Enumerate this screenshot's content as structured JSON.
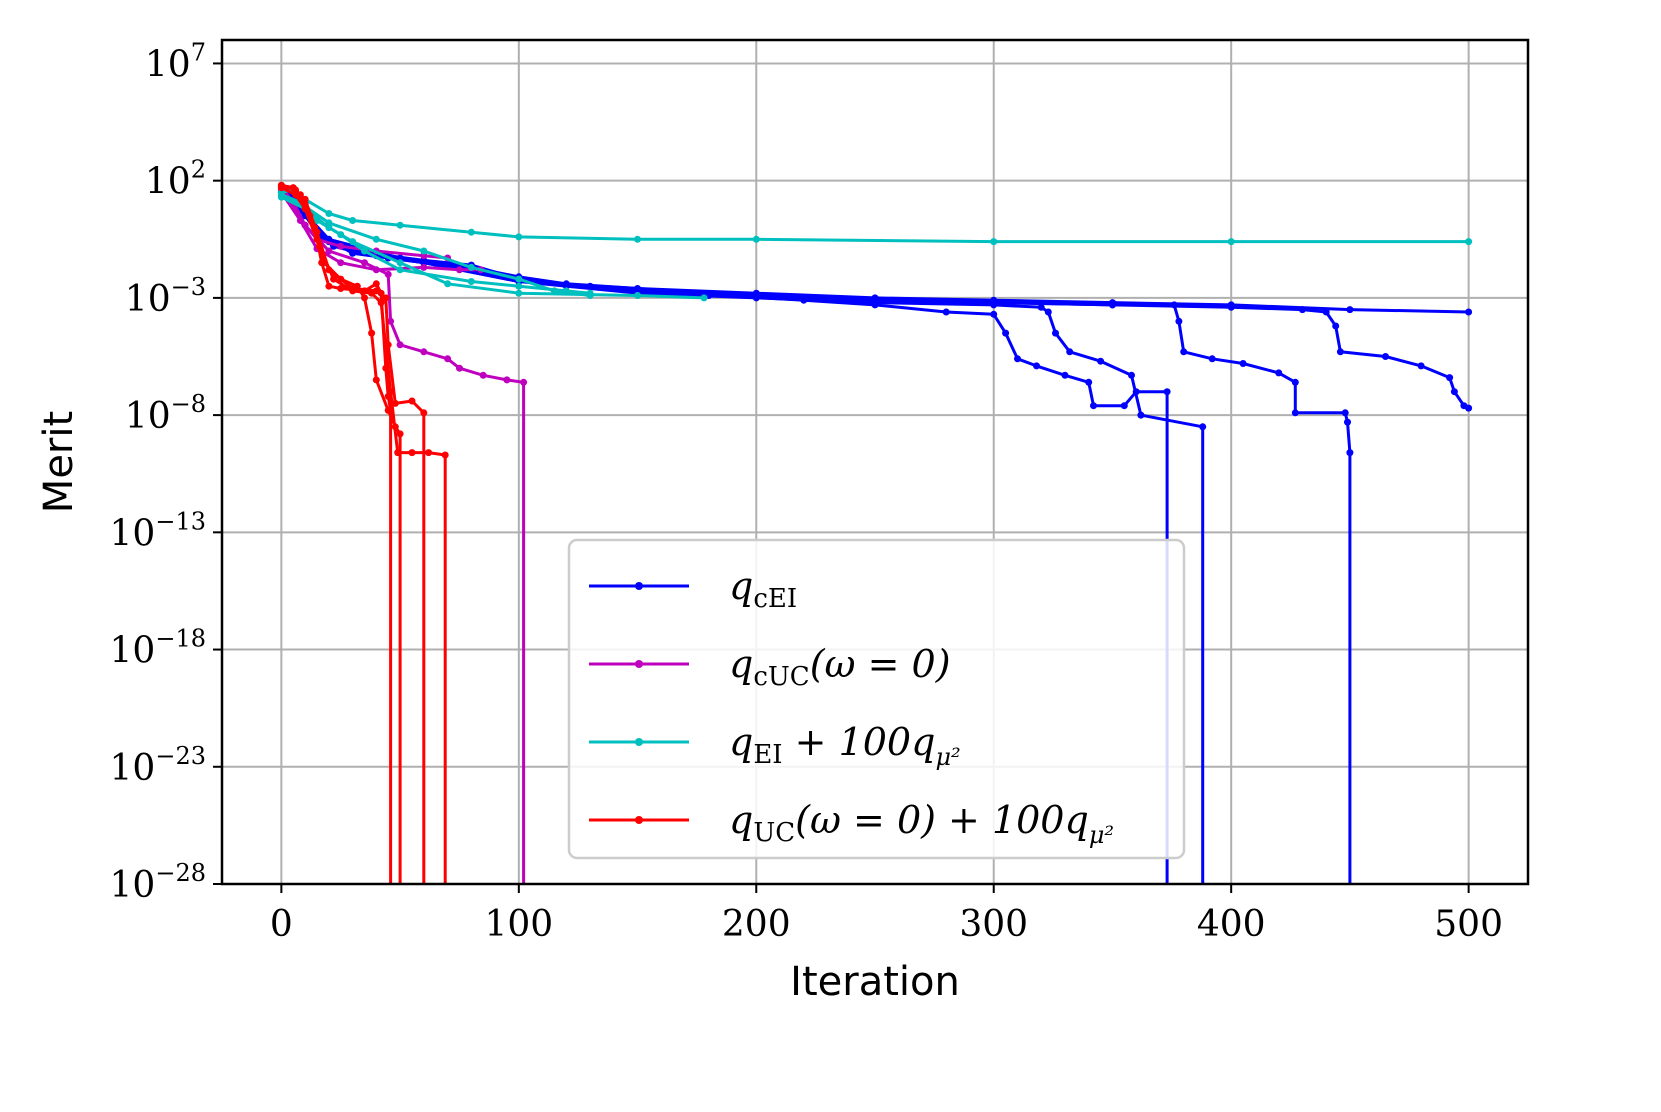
{
  "chart_data": {
    "type": "line",
    "xlabel": "Iteration",
    "ylabel": "Merit",
    "yscale": "log",
    "xlim": [
      -25,
      525
    ],
    "ylim_exponent": [
      -28,
      8
    ],
    "grid": true,
    "legend_position": "lower-center",
    "x_ticks": [
      {
        "value": 0,
        "label": "0"
      },
      {
        "value": 100,
        "label": "100"
      },
      {
        "value": 200,
        "label": "200"
      },
      {
        "value": 300,
        "label": "300"
      },
      {
        "value": 400,
        "label": "400"
      },
      {
        "value": 500,
        "label": "500"
      }
    ],
    "y_ticks": [
      {
        "exp": 7,
        "base": "10",
        "sup": "7"
      },
      {
        "exp": 2,
        "base": "10",
        "sup": "2"
      },
      {
        "exp": -3,
        "base": "10",
        "sup": "−3"
      },
      {
        "exp": -8,
        "base": "10",
        "sup": "−8"
      },
      {
        "exp": -13,
        "base": "10",
        "sup": "−13"
      },
      {
        "exp": -18,
        "base": "10",
        "sup": "−18"
      },
      {
        "exp": -23,
        "base": "10",
        "sup": "−23"
      },
      {
        "exp": -28,
        "base": "10",
        "sup": "−28"
      }
    ],
    "legend": [
      {
        "key": "qcEI",
        "color": "#0000ff",
        "main": "q",
        "sub": "cEI",
        "rest": ""
      },
      {
        "key": "qcUC",
        "color": "#bf00bf",
        "main": "q",
        "sub": "cUC",
        "rest": "(ω = 0)"
      },
      {
        "key": "qEI100",
        "color": "#00bfbf",
        "main": "q",
        "sub": "EI",
        "rest": " + 100q",
        "sub2": "μ²"
      },
      {
        "key": "qUC100",
        "color": "#ff0000",
        "main": "q",
        "sub": "UC",
        "rest": "(ω = 0) + 100q",
        "sub2": "μ²"
      }
    ],
    "series": [
      {
        "name": "qcEI run 1",
        "color": "#0000ff",
        "points": [
          [
            0,
            1.8
          ],
          [
            5,
            1.4
          ],
          [
            10,
            0.6
          ],
          [
            15,
            -0.3
          ],
          [
            22,
            -0.8
          ],
          [
            30,
            -1.0
          ],
          [
            45,
            -1.3
          ],
          [
            60,
            -1.5
          ],
          [
            80,
            -1.7
          ],
          [
            100,
            -2.1
          ],
          [
            120,
            -2.4
          ],
          [
            150,
            -2.6
          ],
          [
            200,
            -2.8
          ],
          [
            250,
            -3.0
          ],
          [
            300,
            -3.1
          ],
          [
            350,
            -3.2
          ],
          [
            400,
            -3.3
          ],
          [
            450,
            -3.5
          ],
          [
            500,
            -3.6
          ]
        ]
      },
      {
        "name": "qcEI run 2",
        "color": "#0000ff",
        "points": [
          [
            0,
            1.7
          ],
          [
            8,
            1.0
          ],
          [
            15,
            -0.3
          ],
          [
            30,
            -1.0
          ],
          [
            60,
            -1.4
          ],
          [
            80,
            -1.6
          ],
          [
            100,
            -2.2
          ],
          [
            130,
            -2.5
          ],
          [
            170,
            -2.8
          ],
          [
            220,
            -3.1
          ],
          [
            250,
            -3.3
          ],
          [
            280,
            -3.6
          ],
          [
            300,
            -3.7
          ],
          [
            305,
            -4.5
          ],
          [
            310,
            -5.6
          ],
          [
            318,
            -5.9
          ],
          [
            330,
            -6.3
          ],
          [
            340,
            -6.6
          ],
          [
            342,
            -7.6
          ],
          [
            355,
            -7.6
          ],
          [
            360,
            -7.0
          ],
          [
            373,
            -7.0
          ],
          [
            373,
            -28
          ]
        ]
      },
      {
        "name": "qcEI run 3",
        "color": "#0000ff",
        "points": [
          [
            0,
            1.6
          ],
          [
            8,
            0.8
          ],
          [
            15,
            -0.2
          ],
          [
            30,
            -1.1
          ],
          [
            60,
            -1.5
          ],
          [
            100,
            -2.3
          ],
          [
            150,
            -2.8
          ],
          [
            200,
            -3.0
          ],
          [
            250,
            -3.2
          ],
          [
            300,
            -3.3
          ],
          [
            320,
            -3.4
          ],
          [
            323,
            -3.6
          ],
          [
            326,
            -4.5
          ],
          [
            332,
            -5.3
          ],
          [
            345,
            -5.7
          ],
          [
            358,
            -6.3
          ],
          [
            362,
            -8.0
          ],
          [
            388,
            -8.5
          ],
          [
            388,
            -28
          ]
        ]
      },
      {
        "name": "qcEI run 4",
        "color": "#0000ff",
        "points": [
          [
            0,
            1.5
          ],
          [
            10,
            0.5
          ],
          [
            20,
            -0.6
          ],
          [
            40,
            -1.2
          ],
          [
            80,
            -1.8
          ],
          [
            120,
            -2.5
          ],
          [
            180,
            -2.9
          ],
          [
            250,
            -3.1
          ],
          [
            300,
            -3.2
          ],
          [
            350,
            -3.3
          ],
          [
            376,
            -3.3
          ],
          [
            378,
            -4.0
          ],
          [
            380,
            -5.3
          ],
          [
            392,
            -5.6
          ],
          [
            405,
            -5.8
          ],
          [
            420,
            -6.2
          ],
          [
            427,
            -6.6
          ],
          [
            427,
            -7.9
          ],
          [
            448,
            -7.9
          ],
          [
            449,
            -8.3
          ],
          [
            450,
            -9.6
          ],
          [
            450,
            -28
          ]
        ]
      },
      {
        "name": "qcEI run 5",
        "color": "#0000ff",
        "points": [
          [
            0,
            1.6
          ],
          [
            10,
            0.6
          ],
          [
            20,
            -0.5
          ],
          [
            50,
            -1.3
          ],
          [
            100,
            -2.3
          ],
          [
            200,
            -2.9
          ],
          [
            300,
            -3.2
          ],
          [
            350,
            -3.3
          ],
          [
            400,
            -3.4
          ],
          [
            430,
            -3.5
          ],
          [
            440,
            -3.6
          ],
          [
            444,
            -4.2
          ],
          [
            446,
            -5.3
          ],
          [
            465,
            -5.5
          ],
          [
            480,
            -5.9
          ],
          [
            492,
            -6.4
          ],
          [
            494,
            -7.0
          ],
          [
            498,
            -7.6
          ],
          [
            500,
            -7.7
          ]
        ]
      },
      {
        "name": "qcUC run 1",
        "color": "#bf00bf",
        "points": [
          [
            0,
            1.7
          ],
          [
            5,
            1.1
          ],
          [
            10,
            0.1
          ],
          [
            15,
            -0.5
          ],
          [
            25,
            -0.8
          ],
          [
            40,
            -1.0
          ],
          [
            60,
            -1.2
          ],
          [
            70,
            -1.3
          ]
        ]
      },
      {
        "name": "qcUC run 2",
        "color": "#bf00bf",
        "points": [
          [
            0,
            1.5
          ],
          [
            8,
            0.3
          ],
          [
            15,
            -0.9
          ],
          [
            25,
            -1.5
          ],
          [
            40,
            -1.8
          ],
          [
            60,
            -1.7
          ],
          [
            75,
            -1.8
          ],
          [
            84,
            -1.8
          ]
        ]
      },
      {
        "name": "qcUC run 3",
        "color": "#bf00bf",
        "points": [
          [
            0,
            1.6
          ],
          [
            10,
            0.1
          ],
          [
            20,
            -1.0
          ],
          [
            35,
            -1.5
          ],
          [
            45,
            -2.0
          ],
          [
            46,
            -4.0
          ],
          [
            50,
            -5.0
          ],
          [
            60,
            -5.3
          ],
          [
            70,
            -5.6
          ],
          [
            75,
            -6.0
          ],
          [
            85,
            -6.3
          ],
          [
            95,
            -6.5
          ],
          [
            102,
            -6.6
          ],
          [
            102,
            -28
          ]
        ]
      },
      {
        "name": "qEI run 1",
        "color": "#00bfbf",
        "points": [
          [
            0,
            1.5
          ],
          [
            5,
            1.6
          ],
          [
            10,
            1.2
          ],
          [
            20,
            0.6
          ],
          [
            30,
            0.3
          ],
          [
            50,
            0.1
          ],
          [
            80,
            -0.2
          ],
          [
            100,
            -0.4
          ],
          [
            150,
            -0.5
          ],
          [
            200,
            -0.5
          ],
          [
            300,
            -0.6
          ],
          [
            400,
            -0.6
          ],
          [
            500,
            -0.6
          ]
        ]
      },
      {
        "name": "qEI run 2",
        "color": "#00bfbf",
        "points": [
          [
            0,
            1.4
          ],
          [
            10,
            1.0
          ],
          [
            15,
            0.3
          ],
          [
            25,
            -0.3
          ],
          [
            35,
            -1.0
          ],
          [
            50,
            -1.8
          ],
          [
            80,
            -2.3
          ],
          [
            100,
            -2.5
          ],
          [
            120,
            -2.7
          ],
          [
            130,
            -2.8
          ]
        ]
      },
      {
        "name": "qEI run 3",
        "color": "#00bfbf",
        "points": [
          [
            0,
            1.3
          ],
          [
            10,
            0.8
          ],
          [
            20,
            0.0
          ],
          [
            30,
            -0.6
          ],
          [
            50,
            -1.5
          ],
          [
            70,
            -2.4
          ],
          [
            100,
            -2.8
          ],
          [
            150,
            -2.9
          ],
          [
            178,
            -3.0
          ]
        ]
      },
      {
        "name": "qEI run 4",
        "color": "#00bfbf",
        "points": [
          [
            0,
            1.4
          ],
          [
            10,
            0.9
          ],
          [
            20,
            0.2
          ],
          [
            40,
            -0.5
          ],
          [
            60,
            -1.0
          ],
          [
            80,
            -1.7
          ],
          [
            100,
            -2.2
          ],
          [
            115,
            -2.7
          ],
          [
            130,
            -2.9
          ]
        ]
      },
      {
        "name": "qUC run 1",
        "color": "#ff0000",
        "points": [
          [
            0,
            1.8
          ],
          [
            5,
            1.7
          ],
          [
            8,
            1.4
          ],
          [
            12,
            0.5
          ],
          [
            15,
            -0.5
          ],
          [
            17,
            -1.5
          ],
          [
            20,
            -2.5
          ],
          [
            25,
            -2.6
          ],
          [
            35,
            -2.7
          ],
          [
            40,
            -2.4
          ],
          [
            42,
            -2.8
          ],
          [
            44,
            -6.0
          ],
          [
            45,
            -7.2
          ],
          [
            46,
            -7.8
          ],
          [
            46,
            -28
          ]
        ]
      },
      {
        "name": "qUC run 2",
        "color": "#ff0000",
        "points": [
          [
            0,
            1.8
          ],
          [
            6,
            1.6
          ],
          [
            10,
            1.0
          ],
          [
            14,
            0.0
          ],
          [
            18,
            -1.5
          ],
          [
            25,
            -2.2
          ],
          [
            32,
            -2.5
          ],
          [
            35,
            -3.0
          ],
          [
            38,
            -4.5
          ],
          [
            40,
            -6.5
          ],
          [
            45,
            -7.8
          ],
          [
            48,
            -8.5
          ],
          [
            50,
            -8.8
          ],
          [
            50,
            -28
          ]
        ]
      },
      {
        "name": "qUC run 3",
        "color": "#ff0000",
        "points": [
          [
            0,
            1.8
          ],
          [
            5,
            1.7
          ],
          [
            10,
            1.2
          ],
          [
            15,
            -0.2
          ],
          [
            20,
            -1.8
          ],
          [
            30,
            -2.6
          ],
          [
            40,
            -2.7
          ],
          [
            44,
            -3.0
          ],
          [
            45,
            -5.0
          ],
          [
            48,
            -7.5
          ],
          [
            55,
            -7.4
          ],
          [
            60,
            -7.9
          ],
          [
            60,
            -28
          ]
        ]
      },
      {
        "name": "qUC run 4",
        "color": "#ff0000",
        "points": [
          [
            0,
            1.7
          ],
          [
            6,
            1.4
          ],
          [
            10,
            0.8
          ],
          [
            16,
            -0.8
          ],
          [
            22,
            -2.2
          ],
          [
            30,
            -2.7
          ],
          [
            38,
            -2.8
          ],
          [
            42,
            -3.2
          ],
          [
            46,
            -7.0
          ],
          [
            49,
            -9.6
          ],
          [
            55,
            -9.6
          ],
          [
            62,
            -9.6
          ],
          [
            69,
            -9.7
          ],
          [
            69,
            -28
          ]
        ]
      }
    ]
  }
}
